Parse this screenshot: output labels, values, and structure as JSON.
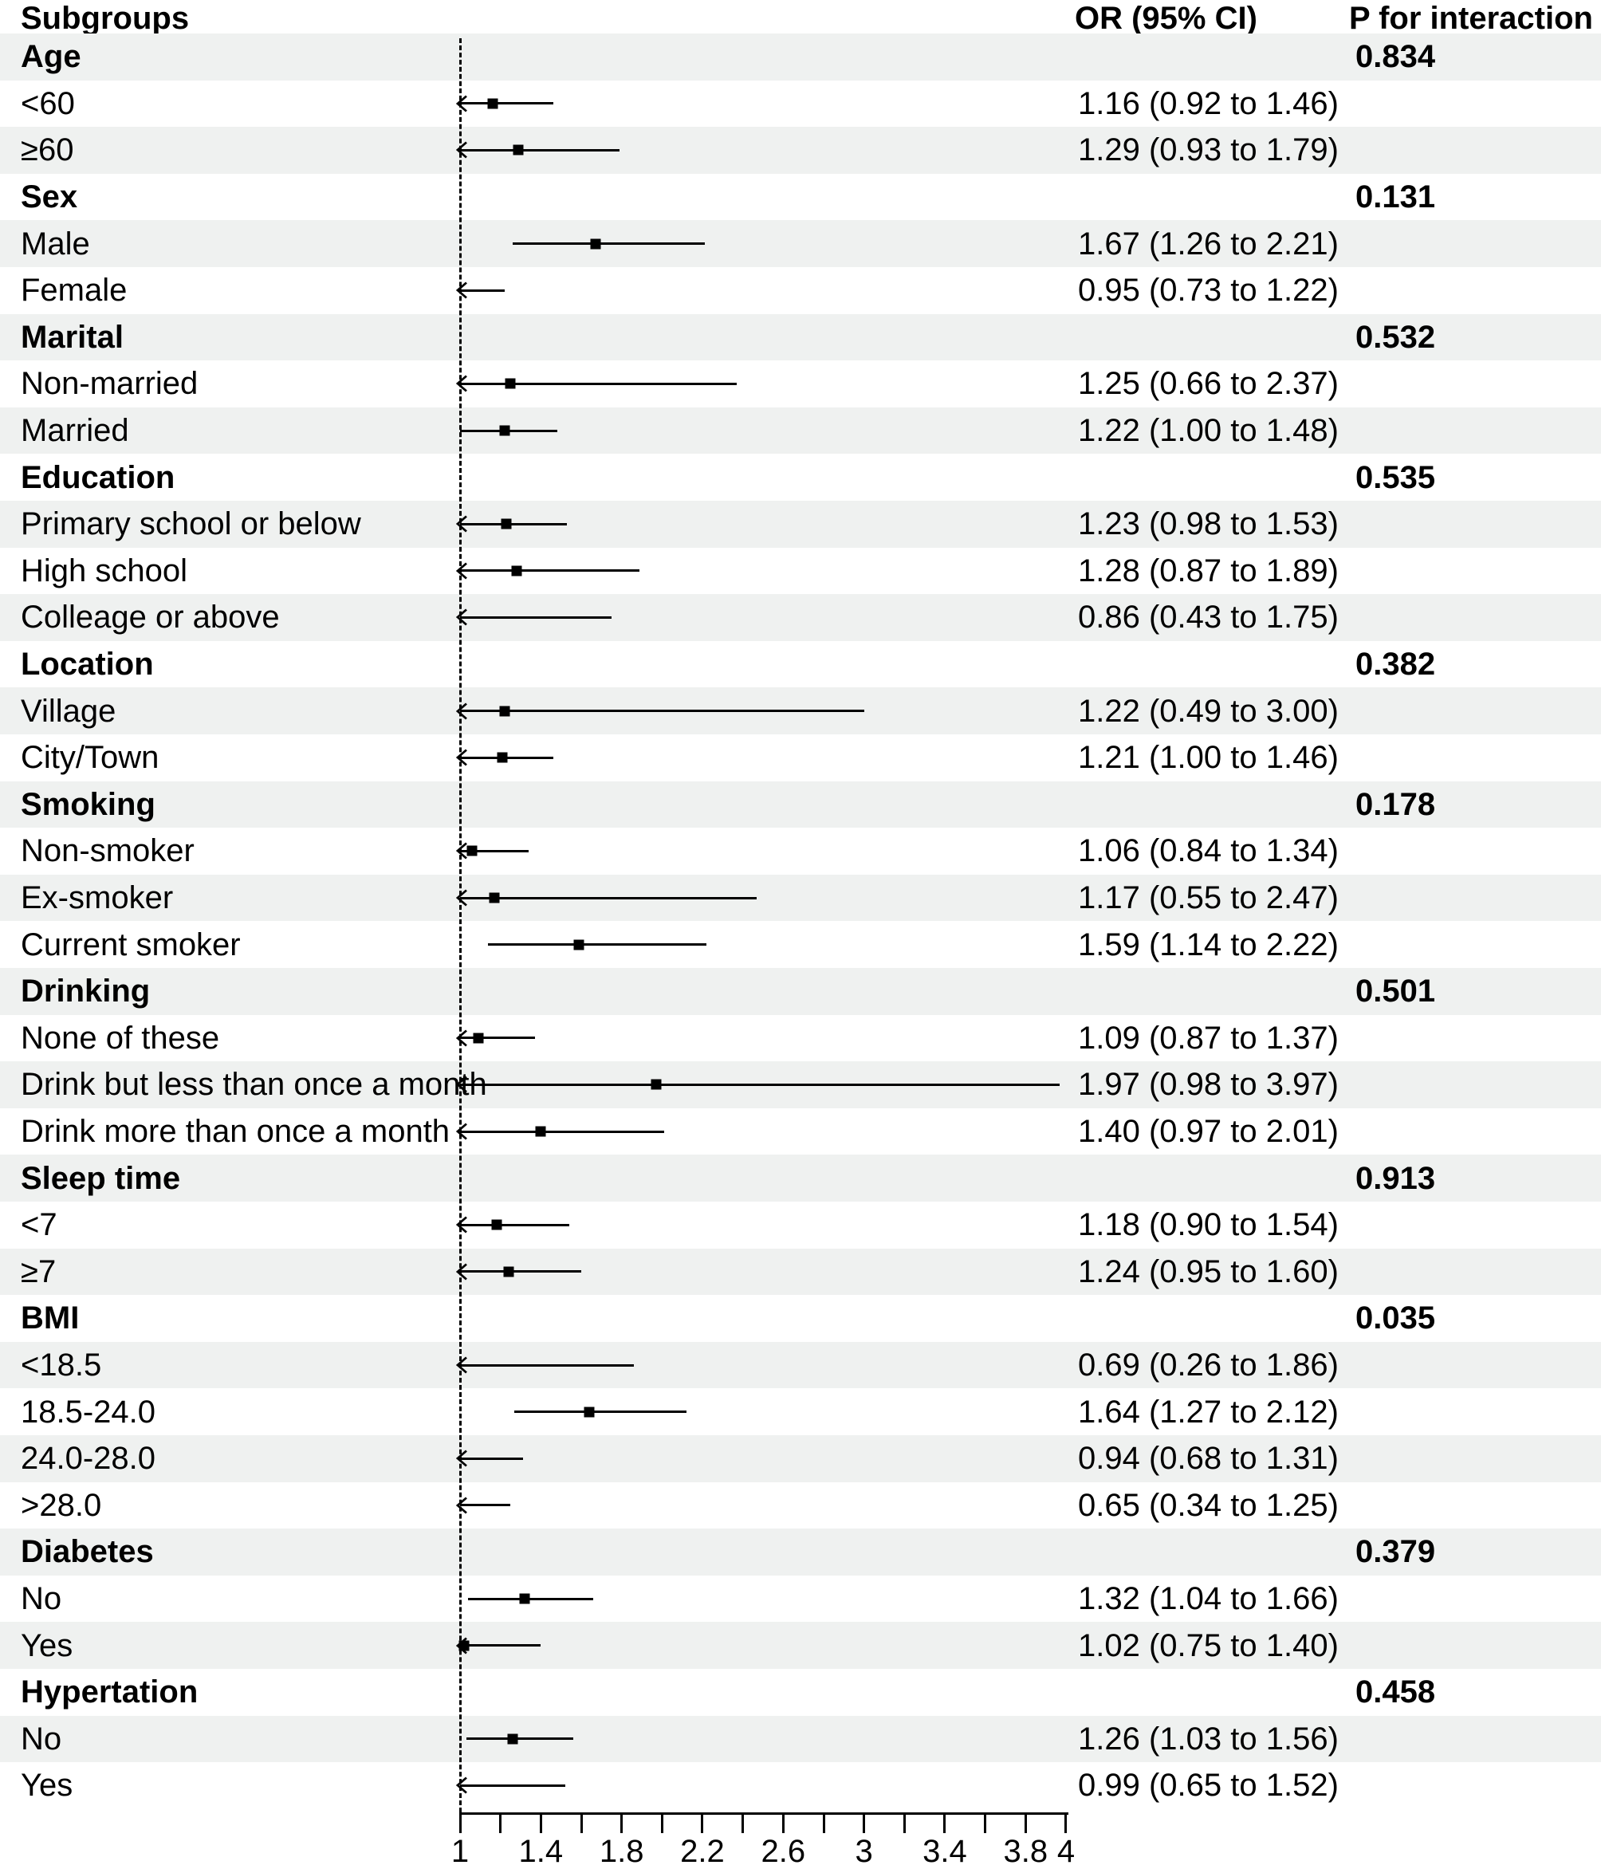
{
  "header": {
    "subgroups": "Subgroups",
    "or_ci": "OR (95% CI)",
    "p_interaction": "P for interaction"
  },
  "colors": {
    "background": "#ffffff",
    "stripe": "#eff1f0",
    "ink": "#000000"
  },
  "chart_data": {
    "type": "scatter",
    "variant": "forest-plot",
    "title": "",
    "xlabel": "",
    "x_axis": {
      "scale": "linear",
      "lim": [
        1,
        4
      ],
      "major_tick_values": [
        1,
        1.4,
        1.8,
        2.2,
        2.6,
        3,
        3.4,
        3.8,
        4
      ],
      "major_tick_labels": [
        "1",
        "1.4",
        "1.8",
        "2.2",
        "2.6",
        "3",
        "3.4",
        "3.8",
        "4"
      ],
      "minor_tick_values": [
        1.2,
        1.6,
        2.0,
        2.4,
        2.8,
        3.2,
        3.6
      ],
      "reference_line": 1
    },
    "groups": [
      {
        "label": "Age",
        "p_for_interaction": "0.834",
        "items": [
          {
            "label": "<60",
            "or": 1.16,
            "ci_low": 0.92,
            "ci_high": 1.46,
            "or_ci_text": "1.16 (0.92 to 1.46)",
            "clip_arrow": true
          },
          {
            "label": "≥60",
            "or": 1.29,
            "ci_low": 0.93,
            "ci_high": 1.79,
            "or_ci_text": "1.29 (0.93 to 1.79)",
            "clip_arrow": true
          }
        ]
      },
      {
        "label": "Sex",
        "p_for_interaction": "0.131",
        "items": [
          {
            "label": "Male",
            "or": 1.67,
            "ci_low": 1.26,
            "ci_high": 2.21,
            "or_ci_text": "1.67 (1.26 to 2.21)",
            "clip_arrow": false
          },
          {
            "label": "Female",
            "or": 0.95,
            "ci_low": 0.73,
            "ci_high": 1.22,
            "or_ci_text": "0.95 (0.73 to 1.22)",
            "clip_arrow": true
          }
        ]
      },
      {
        "label": "Marital",
        "p_for_interaction": "0.532",
        "items": [
          {
            "label": "Non-married",
            "or": 1.25,
            "ci_low": 0.66,
            "ci_high": 2.37,
            "or_ci_text": "1.25 (0.66 to 2.37)",
            "clip_arrow": true
          },
          {
            "label": "Married",
            "or": 1.22,
            "ci_low": 1.0,
            "ci_high": 1.48,
            "or_ci_text": "1.22 (1.00 to 1.48)",
            "clip_arrow": false
          }
        ]
      },
      {
        "label": "Education",
        "p_for_interaction": "0.535",
        "items": [
          {
            "label": "Primary school or below",
            "or": 1.23,
            "ci_low": 0.98,
            "ci_high": 1.53,
            "or_ci_text": "1.23 (0.98 to 1.53)",
            "clip_arrow": true
          },
          {
            "label": "High school",
            "or": 1.28,
            "ci_low": 0.87,
            "ci_high": 1.89,
            "or_ci_text": "1.28 (0.87 to 1.89)",
            "clip_arrow": true
          },
          {
            "label": "Colleage or above",
            "or": 0.86,
            "ci_low": 0.43,
            "ci_high": 1.75,
            "or_ci_text": "0.86 (0.43 to 1.75)",
            "clip_arrow": true
          }
        ]
      },
      {
        "label": "Location",
        "p_for_interaction": "0.382",
        "items": [
          {
            "label": "Village",
            "or": 1.22,
            "ci_low": 0.49,
            "ci_high": 3.0,
            "or_ci_text": "1.22 (0.49 to 3.00)",
            "clip_arrow": true
          },
          {
            "label": "City/Town",
            "or": 1.21,
            "ci_low": 1.0,
            "ci_high": 1.46,
            "or_ci_text": "1.21 (1.00 to 1.46)",
            "clip_arrow": true
          }
        ]
      },
      {
        "label": "Smoking",
        "p_for_interaction": "0.178",
        "items": [
          {
            "label": "Non-smoker",
            "or": 1.06,
            "ci_low": 0.84,
            "ci_high": 1.34,
            "or_ci_text": "1.06 (0.84 to 1.34)",
            "clip_arrow": true
          },
          {
            "label": "Ex-smoker",
            "or": 1.17,
            "ci_low": 0.55,
            "ci_high": 2.47,
            "or_ci_text": "1.17 (0.55 to 2.47)",
            "clip_arrow": true
          },
          {
            "label": "Current smoker",
            "or": 1.59,
            "ci_low": 1.14,
            "ci_high": 2.22,
            "or_ci_text": "1.59 (1.14 to 2.22)",
            "clip_arrow": false
          }
        ]
      },
      {
        "label": "Drinking",
        "p_for_interaction": "0.501",
        "items": [
          {
            "label": "None of these",
            "or": 1.09,
            "ci_low": 0.87,
            "ci_high": 1.37,
            "or_ci_text": "1.09 (0.87 to 1.37)",
            "clip_arrow": true
          },
          {
            "label": "Drink but less than once a month",
            "or": 1.97,
            "ci_low": 0.98,
            "ci_high": 3.97,
            "or_ci_text": "1.97 (0.98 to 3.97)",
            "clip_arrow": true
          },
          {
            "label": "Drink more than once a month",
            "or": 1.4,
            "ci_low": 0.97,
            "ci_high": 2.01,
            "or_ci_text": "1.40 (0.97 to 2.01)",
            "clip_arrow": true
          }
        ]
      },
      {
        "label": "Sleep time",
        "p_for_interaction": "0.913",
        "items": [
          {
            "label": "<7",
            "or": 1.18,
            "ci_low": 0.9,
            "ci_high": 1.54,
            "or_ci_text": "1.18 (0.90 to 1.54)",
            "clip_arrow": true
          },
          {
            "label": "≥7",
            "or": 1.24,
            "ci_low": 0.95,
            "ci_high": 1.6,
            "or_ci_text": "1.24 (0.95 to 1.60)",
            "clip_arrow": true
          }
        ]
      },
      {
        "label": "BMI",
        "p_for_interaction": "0.035",
        "items": [
          {
            "label": "<18.5",
            "or": 0.69,
            "ci_low": 0.26,
            "ci_high": 1.86,
            "or_ci_text": "0.69 (0.26 to 1.86)",
            "clip_arrow": true
          },
          {
            "label": "18.5-24.0",
            "or": 1.64,
            "ci_low": 1.27,
            "ci_high": 2.12,
            "or_ci_text": "1.64 (1.27 to 2.12)",
            "clip_arrow": false
          },
          {
            "label": "24.0-28.0",
            "or": 0.94,
            "ci_low": 0.68,
            "ci_high": 1.31,
            "or_ci_text": "0.94 (0.68 to 1.31)",
            "clip_arrow": true
          },
          {
            "label": ">28.0",
            "or": 0.65,
            "ci_low": 0.34,
            "ci_high": 1.25,
            "or_ci_text": "0.65 (0.34 to 1.25)",
            "clip_arrow": true
          }
        ]
      },
      {
        "label": "Diabetes",
        "p_for_interaction": "0.379",
        "items": [
          {
            "label": "No",
            "or": 1.32,
            "ci_low": 1.04,
            "ci_high": 1.66,
            "or_ci_text": "1.32 (1.04 to 1.66)",
            "clip_arrow": false
          },
          {
            "label": "Yes",
            "or": 1.02,
            "ci_low": 0.75,
            "ci_high": 1.4,
            "or_ci_text": "1.02 (0.75 to 1.40)",
            "clip_arrow": true
          }
        ]
      },
      {
        "label": "Hypertation",
        "p_for_interaction": "0.458",
        "items": [
          {
            "label": "No",
            "or": 1.26,
            "ci_low": 1.03,
            "ci_high": 1.56,
            "or_ci_text": "1.26 (1.03 to 1.56)",
            "clip_arrow": false
          },
          {
            "label": "Yes",
            "or": 0.99,
            "ci_low": 0.65,
            "ci_high": 1.52,
            "or_ci_text": "0.99 (0.65 to 1.52)",
            "clip_arrow": true
          }
        ]
      }
    ]
  }
}
